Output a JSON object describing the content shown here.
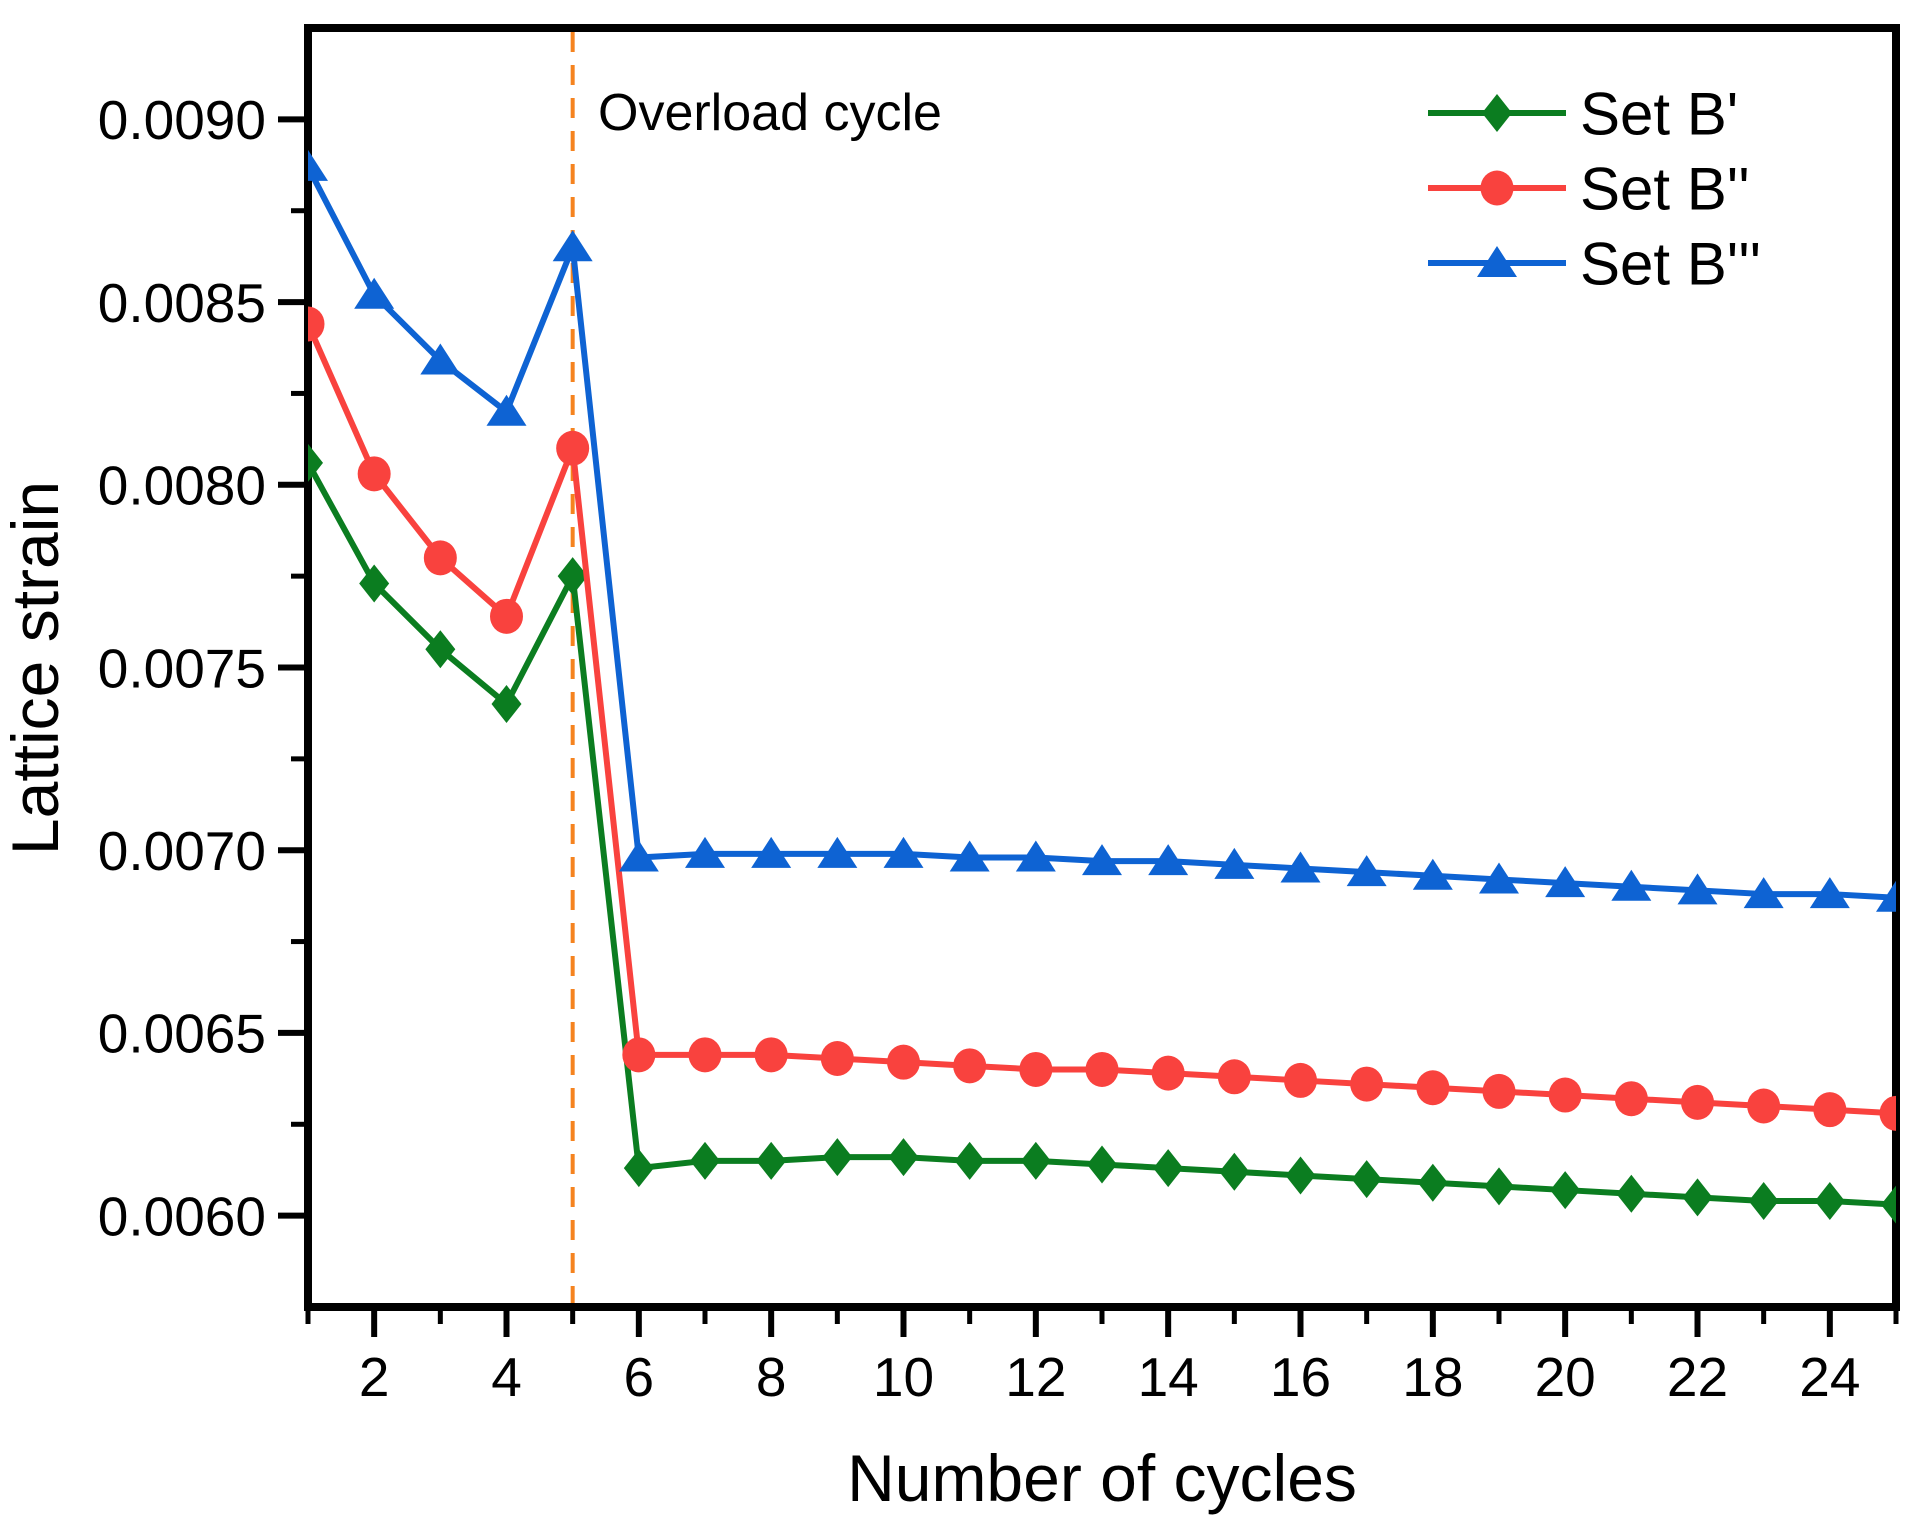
{
  "figure": {
    "background_color": "#FFFFFF",
    "text_color": "#000000",
    "spine_color": "#000000"
  },
  "chart_data": {
    "type": "line",
    "title": "",
    "xlabel": "Number of cycles",
    "ylabel": "Lattice strain",
    "xlim": [
      1,
      25
    ],
    "ylim": [
      0.00575,
      0.00925
    ],
    "grid": false,
    "legend_position": "top-right-inside",
    "x": [
      1,
      2,
      3,
      4,
      5,
      6,
      7,
      8,
      9,
      10,
      11,
      12,
      13,
      14,
      15,
      16,
      17,
      18,
      19,
      20,
      21,
      22,
      23,
      24,
      25
    ],
    "series": [
      {
        "name": "Set B'",
        "marker": "diamond",
        "color": "#0B7D20",
        "values": [
          0.00806,
          0.00773,
          0.00755,
          0.0074,
          0.00775,
          0.00613,
          0.00615,
          0.00615,
          0.00616,
          0.00616,
          0.00615,
          0.00615,
          0.00614,
          0.00613,
          0.00612,
          0.00611,
          0.0061,
          0.00609,
          0.00608,
          0.00607,
          0.00606,
          0.00605,
          0.00604,
          0.00604,
          0.00603
        ]
      },
      {
        "name": "Set B''",
        "marker": "circle",
        "color": "#F9423E",
        "values": [
          0.00844,
          0.00803,
          0.0078,
          0.00764,
          0.0081,
          0.00644,
          0.00644,
          0.00644,
          0.00643,
          0.00642,
          0.00641,
          0.0064,
          0.0064,
          0.00639,
          0.00638,
          0.00637,
          0.00636,
          0.00635,
          0.00634,
          0.00633,
          0.00632,
          0.00631,
          0.0063,
          0.00629,
          0.00628
        ]
      },
      {
        "name": "Set B'''",
        "marker": "triangle",
        "color": "#0E63D3",
        "values": [
          0.00887,
          0.00852,
          0.00834,
          0.0082,
          0.00865,
          0.00698,
          0.00699,
          0.00699,
          0.00699,
          0.00699,
          0.00698,
          0.00698,
          0.00697,
          0.00697,
          0.00696,
          0.00695,
          0.00694,
          0.00693,
          0.00692,
          0.00691,
          0.0069,
          0.00689,
          0.00688,
          0.00688,
          0.00687
        ]
      }
    ],
    "x_major_ticks": [
      2,
      4,
      6,
      8,
      10,
      12,
      14,
      16,
      18,
      20,
      22,
      24
    ],
    "x_major_tick_labels": [
      "2",
      "4",
      "6",
      "8",
      "10",
      "12",
      "14",
      "16",
      "18",
      "20",
      "22",
      "24"
    ],
    "x_minor_ticks": [
      1,
      3,
      5,
      7,
      9,
      11,
      13,
      15,
      17,
      19,
      21,
      23,
      25
    ],
    "y_major_ticks": [
      0.006,
      0.0065,
      0.007,
      0.0075,
      0.008,
      0.0085,
      0.009
    ],
    "y_major_tick_labels": [
      "0.0060",
      "0.0065",
      "0.0070",
      "0.0075",
      "0.0080",
      "0.0085",
      "0.0090"
    ],
    "y_minor_ticks": [
      0.00625,
      0.00675,
      0.00725,
      0.00775,
      0.00825,
      0.00875
    ],
    "annotation": {
      "text": "Overload cycle",
      "x": 5,
      "line_color": "#F5831F",
      "line_style": "dashed"
    }
  }
}
